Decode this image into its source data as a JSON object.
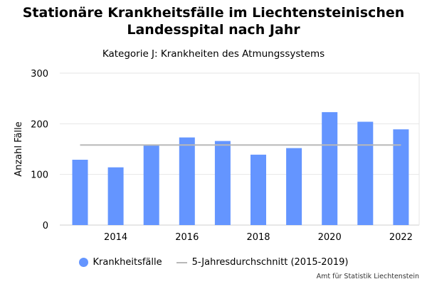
{
  "chart_data": {
    "type": "bar",
    "title": "Stationäre Krankheitsfälle im Liechtensteinischen Landesspital nach Jahr",
    "subtitle": "Kategorie J: Krankheiten des Atmungssystems",
    "ylabel": "Anzahl Fälle",
    "xlabel": "",
    "ylim": [
      0,
      300
    ],
    "yticks": [
      0,
      100,
      200,
      300
    ],
    "x": [
      2013,
      2014,
      2015,
      2016,
      2017,
      2018,
      2019,
      2020,
      2021,
      2022
    ],
    "xtick_labels": [
      "2014",
      "2016",
      "2018",
      "2020",
      "2022"
    ],
    "series": [
      {
        "name": "Krankheitsfälle",
        "type": "bar",
        "color": "#6495ff",
        "values": [
          129,
          114,
          158,
          173,
          166,
          139,
          152,
          223,
          204,
          189
        ]
      },
      {
        "name": "5-Jahresdurchschnitt (2015-2019)",
        "type": "line",
        "color": "#b8b8b8",
        "value": 158
      }
    ],
    "grid": true,
    "legend": "bottom-center",
    "source": "Amt für Statistik Liechtenstein"
  }
}
